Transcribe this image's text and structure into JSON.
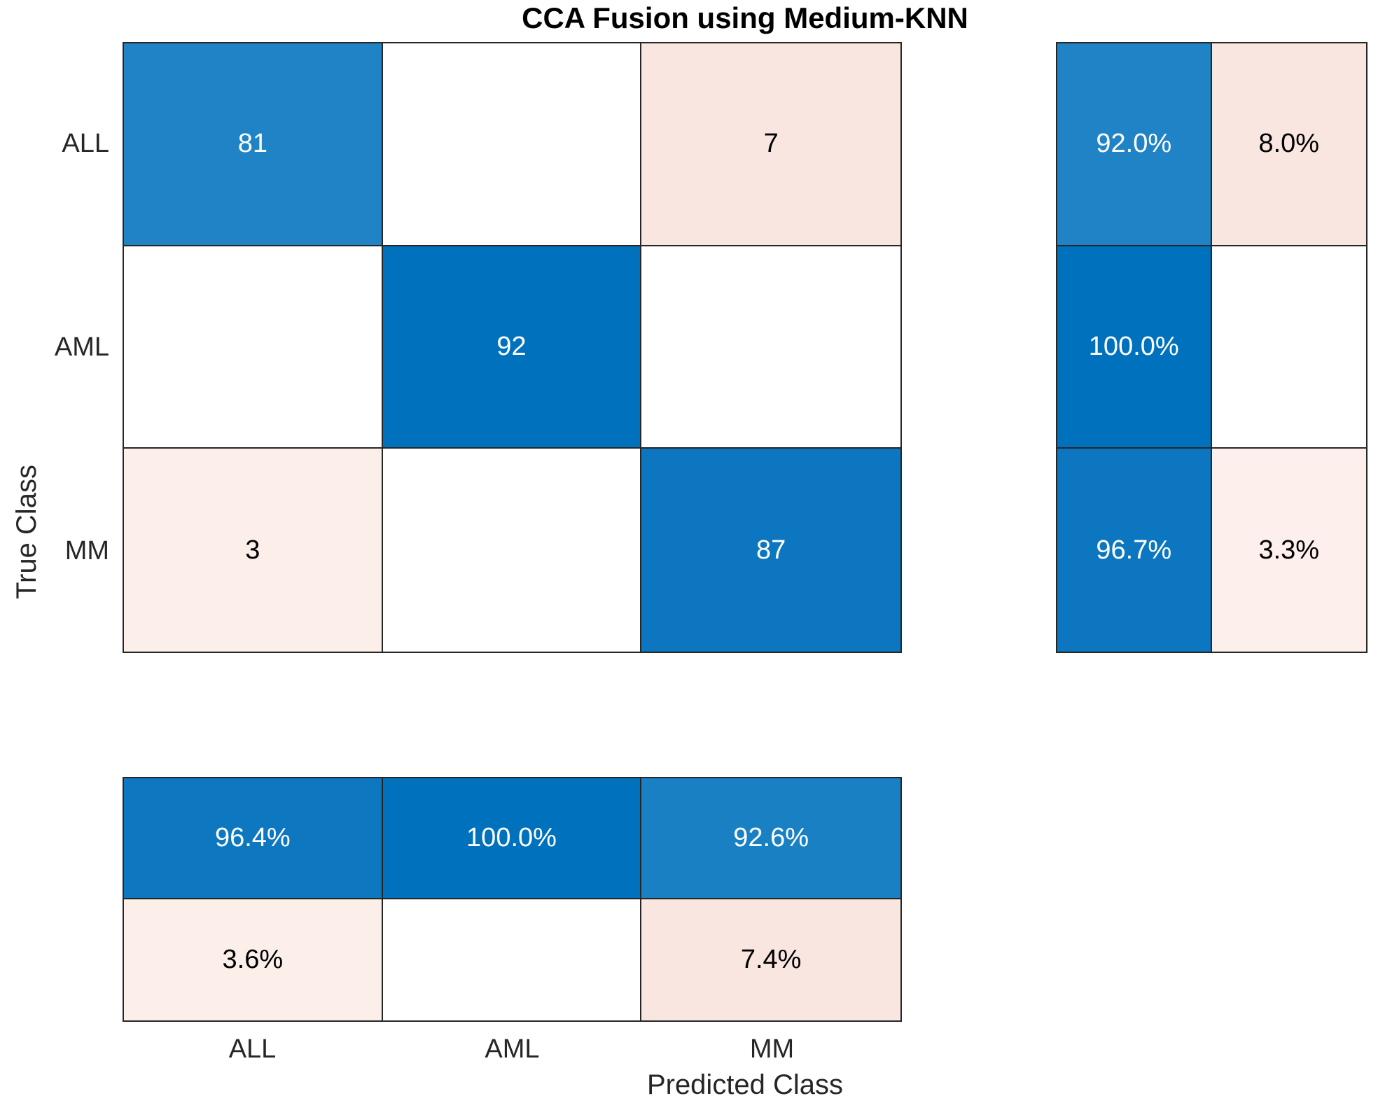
{
  "chart_data": {
    "type": "heatmap",
    "subtype": "confusion_matrix",
    "title": "CCA Fusion using Medium-KNN",
    "xlabel": "Predicted Class",
    "ylabel": "True Class",
    "classes": [
      "ALL",
      "AML",
      "MM"
    ],
    "counts": [
      [
        81,
        0,
        7
      ],
      [
        0,
        92,
        0
      ],
      [
        3,
        0,
        87
      ]
    ],
    "colors": {
      "diagonal_base_blue": "#0072bd",
      "off_diagonal_base_pink": "#f9e6e0",
      "empty_cell": "#ffffff",
      "grid_border": "#262626",
      "text_on_blue": "#ffffff",
      "text_on_light": "#000000"
    },
    "matrix": {
      "rows": [
        {
          "true_class": "ALL",
          "cells": [
            {
              "label": "81",
              "bg": "#1f83c6",
              "fg": "#ffffff"
            },
            {
              "label": "",
              "bg": "#ffffff",
              "fg": "#000000"
            },
            {
              "label": "7",
              "bg": "#f9e6e0",
              "fg": "#000000"
            }
          ]
        },
        {
          "true_class": "AML",
          "cells": [
            {
              "label": "",
              "bg": "#ffffff",
              "fg": "#000000"
            },
            {
              "label": "92",
              "bg": "#0072bd",
              "fg": "#ffffff"
            },
            {
              "label": "",
              "bg": "#ffffff",
              "fg": "#000000"
            }
          ]
        },
        {
          "true_class": "MM",
          "cells": [
            {
              "label": "3",
              "bg": "#fcefea",
              "fg": "#000000"
            },
            {
              "label": "",
              "bg": "#ffffff",
              "fg": "#000000"
            },
            {
              "label": "87",
              "bg": "#0c77c0",
              "fg": "#ffffff"
            }
          ]
        }
      ]
    },
    "row_summary": {
      "description": "per-true-class correct vs incorrect percentages",
      "rows": [
        {
          "cells": [
            {
              "label": "92.0%",
              "bg": "#1f83c6",
              "fg": "#ffffff"
            },
            {
              "label": "8.0%",
              "bg": "#f9e6e0",
              "fg": "#000000"
            }
          ]
        },
        {
          "cells": [
            {
              "label": "100.0%",
              "bg": "#0072bd",
              "fg": "#ffffff"
            },
            {
              "label": "",
              "bg": "#ffffff",
              "fg": "#000000"
            }
          ]
        },
        {
          "cells": [
            {
              "label": "96.7%",
              "bg": "#0c77c0",
              "fg": "#ffffff"
            },
            {
              "label": "3.3%",
              "bg": "#fdf0ec",
              "fg": "#000000"
            }
          ]
        }
      ]
    },
    "column_summary": {
      "description": "per-predicted-class correct vs incorrect percentages",
      "rows": [
        {
          "cells": [
            {
              "label": "96.4%",
              "bg": "#0d77c0",
              "fg": "#ffffff"
            },
            {
              "label": "100.0%",
              "bg": "#0072bd",
              "fg": "#ffffff"
            },
            {
              "label": "92.6%",
              "bg": "#1a80c4",
              "fg": "#ffffff"
            }
          ]
        },
        {
          "cells": [
            {
              "label": "3.6%",
              "bg": "#fcefea",
              "fg": "#000000"
            },
            {
              "label": "",
              "bg": "#ffffff",
              "fg": "#000000"
            },
            {
              "label": "7.4%",
              "bg": "#f9e6e0",
              "fg": "#000000"
            }
          ]
        }
      ]
    }
  }
}
